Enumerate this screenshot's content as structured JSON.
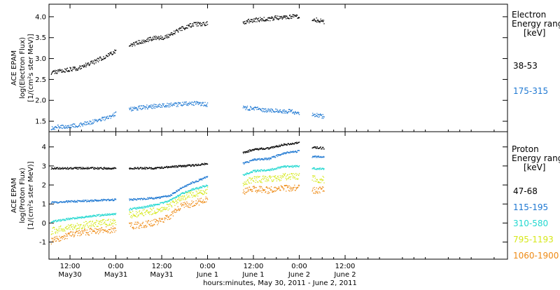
{
  "xaxis": {
    "title": "hours:minutes, May 30, 2011 - June  2, 2011",
    "range_hours": [
      6.5,
      126.5
    ],
    "ticks": [
      {
        "hour": 12,
        "time": "12:00",
        "date": "May30"
      },
      {
        "hour": 24,
        "time": "0:00",
        "date": "May31"
      },
      {
        "hour": 36,
        "time": "12:00",
        "date": "May31"
      },
      {
        "hour": 48,
        "time": "0:00",
        "date": "June 1"
      },
      {
        "hour": 60,
        "time": "12:00",
        "date": "June 1"
      },
      {
        "hour": 72,
        "time": "0:00",
        "date": "June 2"
      },
      {
        "hour": 84,
        "time": "12:00",
        "date": "June 2"
      }
    ]
  },
  "panels": {
    "electron": {
      "ylabel_lines": [
        "ACE EPAM",
        "log(Electron Flux)",
        "[1/(cm²s ster MeV)]"
      ],
      "yticks": [
        "1.5",
        "2.0",
        "2.5",
        "3.0",
        "3.5",
        "4.0"
      ],
      "ylim": [
        1.25,
        4.3
      ],
      "legend_title": [
        "Electron",
        "Energy ranges",
        "[keV]"
      ],
      "ranges": [
        {
          "label": "38-53",
          "color": "#000000"
        },
        {
          "label": "175-315",
          "color": "#1e78d2"
        }
      ]
    },
    "proton": {
      "ylabel_lines": [
        "ACE EPAM",
        "log(Proton Flux)",
        "[1/(cm²s ster MeV)]"
      ],
      "yticks": [
        "-1",
        "0",
        "1",
        "2",
        "3",
        "4"
      ],
      "ylim": [
        -1.9,
        4.8
      ],
      "legend_title": [
        "Proton",
        "Energy ranges",
        "[keV]"
      ],
      "ranges": [
        {
          "label": "47-68",
          "color": "#000000"
        },
        {
          "label": "115-195",
          "color": "#1e78d2"
        },
        {
          "label": "310-580",
          "color": "#22d8d0"
        },
        {
          "label": "795-1193",
          "color": "#d6e81a"
        },
        {
          "label": "1060-1900",
          "color": "#ee8a14"
        }
      ]
    }
  },
  "chart_data": [
    {
      "type": "scatter",
      "x_unit": "hours since May 30, 2011 00:00 UT",
      "y_unit": "log flux",
      "xlim": [
        6.5,
        126.5
      ],
      "ylim": [
        1.25,
        4.3
      ],
      "data_gaps_hours": [
        [
          24,
          27.4
        ],
        [
          48,
          57.2
        ],
        [
          72,
          75.3
        ]
      ],
      "series": [
        {
          "name": "38-53",
          "color": "#000000",
          "x": [
            7,
            10,
            14,
            18,
            22,
            24,
            27.4,
            30,
            34,
            37,
            41,
            44,
            48,
            57.2,
            60,
            64,
            68,
            72,
            75.3,
            78.5
          ],
          "y": [
            2.68,
            2.72,
            2.78,
            2.92,
            3.1,
            3.2,
            3.32,
            3.4,
            3.5,
            3.52,
            3.72,
            3.82,
            3.85,
            3.88,
            3.93,
            3.96,
            4.01,
            4.02,
            3.96,
            3.88
          ]
        },
        {
          "name": "175-315",
          "color": "#1e78d2",
          "x": [
            7,
            10,
            14,
            18,
            22,
            24,
            27.4,
            31,
            35,
            40,
            44,
            48,
            57.2,
            61,
            65,
            70,
            72,
            75.3,
            78.5
          ],
          "y": [
            1.36,
            1.38,
            1.42,
            1.5,
            1.6,
            1.7,
            1.8,
            1.84,
            1.88,
            1.91,
            1.94,
            1.91,
            1.84,
            1.8,
            1.76,
            1.74,
            1.7,
            1.68,
            1.62
          ]
        }
      ]
    },
    {
      "type": "scatter",
      "x_unit": "hours since May 30, 2011 00:00 UT",
      "y_unit": "log flux",
      "xlim": [
        6.5,
        126.5
      ],
      "ylim": [
        -1.9,
        4.8
      ],
      "data_gaps_hours": [
        [
          24,
          27.4
        ],
        [
          48,
          57.2
        ],
        [
          72,
          75.3
        ]
      ],
      "series": [
        {
          "name": "47-68",
          "color": "#000000",
          "x": [
            7,
            12,
            18,
            24,
            27.4,
            34,
            40,
            44,
            48,
            57.2,
            60,
            64,
            68,
            72,
            75.3,
            78.5
          ],
          "y": [
            2.9,
            2.9,
            2.9,
            2.9,
            2.9,
            2.9,
            3.0,
            3.05,
            3.15,
            3.7,
            3.9,
            3.95,
            4.15,
            4.25,
            4.0,
            3.95
          ]
        },
        {
          "name": "115-195",
          "color": "#1e78d2",
          "x": [
            7,
            12,
            18,
            24,
            27.4,
            31,
            35,
            38,
            41,
            44,
            48,
            57.2,
            60,
            64,
            68,
            72,
            75.3,
            78.5
          ],
          "y": [
            1.1,
            1.15,
            1.2,
            1.25,
            1.25,
            1.3,
            1.35,
            1.45,
            1.85,
            2.15,
            2.45,
            3.15,
            3.35,
            3.4,
            3.7,
            3.8,
            3.5,
            3.5
          ]
        },
        {
          "name": "310-580",
          "color": "#22d8d0",
          "x": [
            7,
            12,
            18,
            24,
            27.4,
            31,
            35,
            38,
            41,
            44,
            48,
            57.2,
            60,
            64,
            68,
            72,
            75.3,
            78.5
          ],
          "y": [
            0.1,
            0.25,
            0.4,
            0.5,
            0.75,
            0.85,
            1.0,
            1.2,
            1.55,
            1.8,
            2.0,
            2.55,
            2.75,
            2.8,
            3.0,
            3.0,
            2.9,
            2.85
          ]
        },
        {
          "name": "795-1193",
          "color": "#d6e81a",
          "x": [
            7,
            12,
            18,
            24,
            27.4,
            31,
            35,
            38,
            41,
            44,
            48,
            57.2,
            60,
            64,
            68,
            72,
            75.3,
            78.5
          ],
          "y": [
            -0.4,
            -0.2,
            0.0,
            0.1,
            0.45,
            0.55,
            0.7,
            0.9,
            1.35,
            1.55,
            1.75,
            2.1,
            2.3,
            2.35,
            2.45,
            2.5,
            2.35,
            2.3
          ]
        },
        {
          "name": "1060-1900",
          "color": "#ee8a14",
          "x": [
            7,
            12,
            18,
            24,
            27.4,
            31,
            35,
            38,
            41,
            44,
            48,
            57.2,
            60,
            64,
            68,
            72,
            75.3,
            78.5
          ],
          "y": [
            -0.9,
            -0.6,
            -0.4,
            -0.3,
            -0.15,
            -0.05,
            0.1,
            0.4,
            0.9,
            1.05,
            1.25,
            1.65,
            1.8,
            1.75,
            1.85,
            1.85,
            1.75,
            1.75
          ]
        }
      ]
    }
  ]
}
